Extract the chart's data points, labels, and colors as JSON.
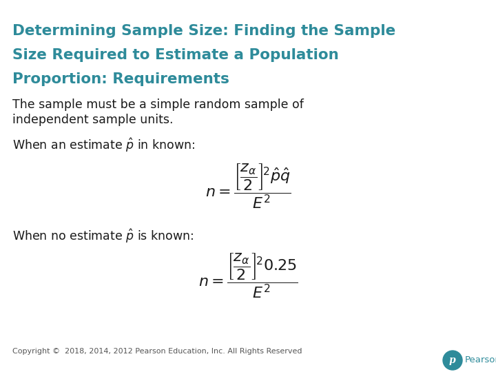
{
  "title_line1": "Determining Sample Size: Finding the Sample",
  "title_line2": "Size Required to Estimate a Population",
  "title_line3": "Proportion: Requirements",
  "title_color": "#2E8B9A",
  "body_color": "#1a1a1a",
  "background_color": "#FFFFFF",
  "text1": "The sample must be a simple random sample of",
  "text1b": "independent sample units.",
  "footer": "Copyright ©  2018, 2014, 2012 Pearson Education, Inc. All Rights Reserved",
  "footer_color": "#555555",
  "pearson_color": "#2E8B9A",
  "title_fontsize": 15.5,
  "body_fontsize": 12.5,
  "formula_fontsize": 16
}
